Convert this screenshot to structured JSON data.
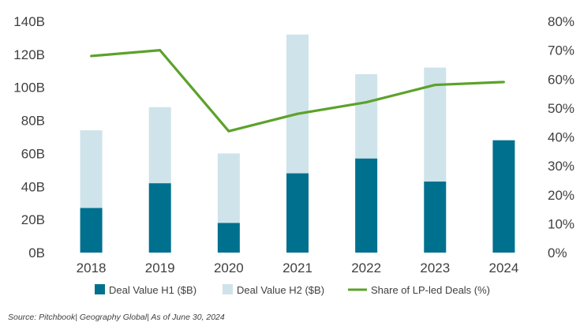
{
  "chart_data": {
    "type": "bar",
    "subtype": "stacked bar with line on secondary axis",
    "categories": [
      "2018",
      "2019",
      "2020",
      "2021",
      "2022",
      "2023",
      "2024"
    ],
    "series": [
      {
        "name": "Deal Value H1 ($B)",
        "kind": "bar",
        "axis": "left",
        "color": "#00708f",
        "values": [
          27,
          42,
          18,
          48,
          57,
          43,
          68
        ]
      },
      {
        "name": "Deal Value H2 ($B)",
        "kind": "bar",
        "axis": "left",
        "color": "#cfe3ea",
        "values": [
          47,
          46,
          42,
          84,
          51,
          69,
          null
        ]
      },
      {
        "name": "Share of LP-led Deals (%)",
        "kind": "line",
        "axis": "right",
        "color": "#5ca22a",
        "values": [
          68,
          70,
          42,
          48,
          52,
          58,
          59
        ]
      }
    ],
    "ylim": [
      0,
      140
    ],
    "y2lim": [
      0,
      80
    ],
    "y_ticks": [
      "0B",
      "20B",
      "40B",
      "60B",
      "80B",
      "100B",
      "120B",
      "140B"
    ],
    "y2_ticks": [
      "0%",
      "10%",
      "20%",
      "30%",
      "40%",
      "50%",
      "60%",
      "70%",
      "80%"
    ],
    "xlabel": "",
    "ylabel": "",
    "y2label": "",
    "grid": false,
    "legend_position": "bottom"
  },
  "source": "Source: Pitchbook| Geography Global| As of June 30, 2024"
}
